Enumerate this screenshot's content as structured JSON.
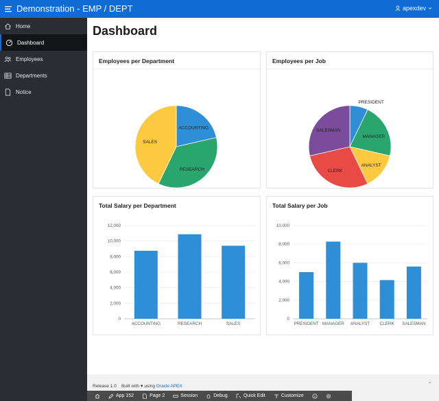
{
  "app": {
    "title": "Demonstration - EMP / DEPT",
    "user": "apexdev"
  },
  "nav": [
    {
      "label": "Home",
      "icon": "home-icon"
    },
    {
      "label": "Dashboard",
      "icon": "dashboard-icon",
      "active": true
    },
    {
      "label": "Employees",
      "icon": "users-icon"
    },
    {
      "label": "Departments",
      "icon": "table-icon"
    },
    {
      "label": "Notice",
      "icon": "document-icon"
    }
  ],
  "page": {
    "title": "Dashboard"
  },
  "colors": {
    "brand": "#0e6cd4",
    "bar": "#2e8fd6",
    "pie": [
      "#2e8fd6",
      "#2aa56e",
      "#fcc940",
      "#e84a46",
      "#7a4c9b"
    ]
  },
  "cards": {
    "emp_dept": "Employees per Department",
    "emp_job": "Employees per Job",
    "sal_dept": "Total Salary per Department",
    "sal_job": "Total Salary per Job"
  },
  "chart_data": [
    {
      "type": "pie",
      "title": "Employees per Department",
      "categories": [
        "ACCOUNTING",
        "RESEARCH",
        "SALES"
      ],
      "values": [
        3,
        5,
        6
      ]
    },
    {
      "type": "pie",
      "title": "Employees per Job",
      "categories": [
        "PRESIDENT",
        "MANAGER",
        "ANALYST",
        "CLERK",
        "SALESMAN"
      ],
      "values": [
        1,
        3,
        2,
        4,
        4
      ]
    },
    {
      "type": "bar",
      "title": "Total Salary per Department",
      "categories": [
        "ACCOUNTING",
        "RESEARCH",
        "SALES"
      ],
      "values": [
        8750,
        10875,
        9400
      ],
      "ylim": [
        0,
        12000
      ],
      "yticks": [
        "0",
        "2,000",
        "4,000",
        "6,000",
        "8,000",
        "10,000",
        "12,000"
      ]
    },
    {
      "type": "bar",
      "title": "Total Salary per Job",
      "categories": [
        "PRESIDENT",
        "MANAGER",
        "ANALYST",
        "CLERK",
        "SALESMAN"
      ],
      "values": [
        5000,
        8275,
        6000,
        4150,
        5600
      ],
      "ylim": [
        0,
        10000
      ],
      "yticks": [
        "0",
        "2,000",
        "4,000",
        "6,000",
        "8,000",
        "10,000"
      ]
    }
  ],
  "footer": {
    "release": "Release 1.0",
    "built_with": "Built with",
    "using": "using",
    "link": "Oracle APEX"
  },
  "devbar": [
    "App 152",
    "Page 2",
    "Session",
    "Debug",
    "Quick Edit",
    "Customize"
  ]
}
